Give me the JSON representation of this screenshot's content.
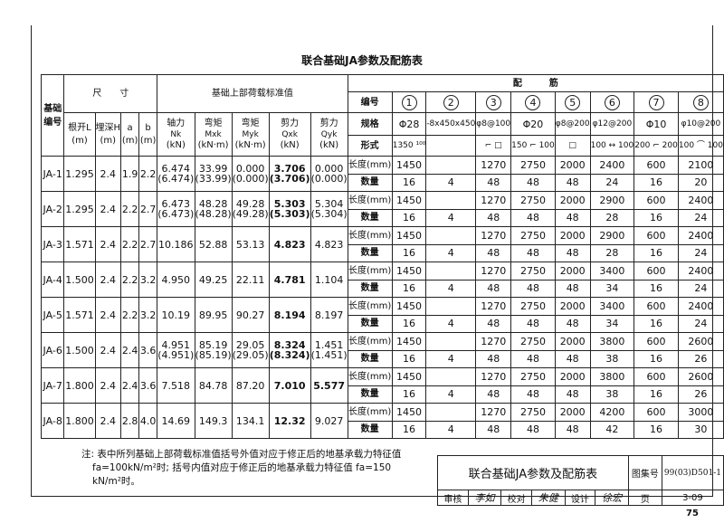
{
  "title": "联合基础JA参数及配筋表",
  "header": {
    "id_col": "基础编号",
    "dims": "尺　　寸",
    "loads": "基础上部荷载标准值",
    "rebar": "配　　　筋",
    "dim_cols": [
      [
        "根开L",
        "(m)"
      ],
      [
        "埋深H",
        "(m)"
      ],
      [
        "a",
        "(m)"
      ],
      [
        "b",
        "(m)"
      ]
    ],
    "load_cols": [
      [
        "轴力",
        "Nk",
        "(kN)"
      ],
      [
        "弯矩",
        "Mxk",
        "(kN·m)"
      ],
      [
        "弯矩",
        "Myk",
        "(kN·m)"
      ],
      [
        "剪力",
        "Qxk",
        "(kN)"
      ],
      [
        "剪力",
        "Qyk",
        "(kN)"
      ]
    ],
    "row_labels": {
      "number": "编号",
      "spec": "规格",
      "form": "形式",
      "length": "长度(mm)",
      "qty": "数量"
    },
    "bar_numbers": [
      "1",
      "2",
      "3",
      "4",
      "5",
      "6",
      "7",
      "8"
    ],
    "bar_specs": [
      "Φ28",
      "-8x450x450",
      "φ8@100",
      "Φ20",
      "φ8@200",
      "φ12@200",
      "Φ10",
      "φ10@200"
    ],
    "bar_forms": [
      "1350 ¹⁰⁰",
      "",
      "⌐ □",
      "150 ⌐ 100",
      "□",
      "100 ↔ 100",
      "200 ⌐ 200",
      "100 ⌒ 100"
    ]
  },
  "rows": [
    {
      "id": "JA-1",
      "L": "1.295",
      "H": "2.4",
      "a": "1.9",
      "b": "2.2",
      "N": "6.474",
      "N2": "(6.474)",
      "Mx": "33.99",
      "Mx2": "(33.99)",
      "My": "0.000",
      "My2": "(0.000)",
      "Qx": "3.706",
      "Qx2": "(3.706)",
      "Qy": "0.000",
      "Qy2": "(0.000)",
      "len": [
        "1450",
        "",
        "1270",
        "2750",
        "2000",
        "2400",
        "600",
        "2100"
      ],
      "qty": [
        "16",
        "4",
        "48",
        "48",
        "48",
        "24",
        "16",
        "20"
      ]
    },
    {
      "id": "JA-2",
      "L": "1.295",
      "H": "2.4",
      "a": "2.2",
      "b": "2.7",
      "N": "6.473",
      "N2": "(6.473)",
      "Mx": "48.28",
      "Mx2": "(48.28)",
      "My": "49.28",
      "My2": "(49.28)",
      "Qx": "5.303",
      "Qx2": "(5.303)",
      "Qy": "5.304",
      "Qy2": "(5.304)",
      "len": [
        "1450",
        "",
        "1270",
        "2750",
        "2000",
        "2900",
        "600",
        "2400"
      ],
      "qty": [
        "16",
        "4",
        "48",
        "48",
        "48",
        "28",
        "16",
        "24"
      ]
    },
    {
      "id": "JA-3",
      "L": "1.571",
      "H": "2.4",
      "a": "2.2",
      "b": "2.7",
      "N": "10.186",
      "Mx": "52.88",
      "My": "53.13",
      "Qx": "4.823",
      "Qy": "4.823",
      "len": [
        "1450",
        "",
        "1270",
        "2750",
        "2000",
        "2900",
        "600",
        "2400"
      ],
      "qty": [
        "16",
        "4",
        "48",
        "48",
        "48",
        "28",
        "16",
        "24"
      ]
    },
    {
      "id": "JA-4",
      "L": "1.500",
      "H": "2.4",
      "a": "2.2",
      "b": "3.2",
      "N": "4.950",
      "Mx": "49.25",
      "My": "22.11",
      "Qx": "4.781",
      "Qy": "1.104",
      "len": [
        "1450",
        "",
        "1270",
        "2750",
        "2000",
        "3400",
        "600",
        "2400"
      ],
      "qty": [
        "16",
        "4",
        "48",
        "48",
        "48",
        "34",
        "16",
        "24"
      ]
    },
    {
      "id": "JA-5",
      "L": "1.571",
      "H": "2.4",
      "a": "2.2",
      "b": "3.2",
      "N": "10.19",
      "Mx": "89.95",
      "My": "90.27",
      "Qx": "8.194",
      "Qy": "8.197",
      "len": [
        "1450",
        "",
        "1270",
        "2750",
        "2000",
        "3400",
        "600",
        "2400"
      ],
      "qty": [
        "16",
        "4",
        "48",
        "48",
        "48",
        "34",
        "16",
        "24"
      ]
    },
    {
      "id": "JA-6",
      "L": "1.500",
      "H": "2.4",
      "a": "2.4",
      "b": "3.6",
      "N": "4.951",
      "N2": "(4.951)",
      "Mx": "85.19",
      "Mx2": "(85.19)",
      "My": "29.05",
      "My2": "(29.05)",
      "Qx": "8.324",
      "Qx2": "(8.324)",
      "Qy": "1.451",
      "Qy2": "(1.451)",
      "len": [
        "1450",
        "",
        "1270",
        "2750",
        "2000",
        "3800",
        "600",
        "2600"
      ],
      "qty": [
        "16",
        "4",
        "48",
        "48",
        "48",
        "38",
        "16",
        "26"
      ]
    },
    {
      "id": "JA-7",
      "L": "1.800",
      "H": "2.4",
      "a": "2.4",
      "b": "3.6",
      "N": "7.518",
      "Mx": "84.78",
      "My": "87.20",
      "Qx": "7.010",
      "Qy": "5.577",
      "len": [
        "1450",
        "",
        "1270",
        "2750",
        "2000",
        "3800",
        "600",
        "2600"
      ],
      "qty": [
        "16",
        "4",
        "48",
        "48",
        "48",
        "38",
        "16",
        "26"
      ]
    },
    {
      "id": "JA-8",
      "L": "1.800",
      "H": "2.4",
      "a": "2.8",
      "b": "4.0",
      "N": "14.69",
      "Mx": "149.3",
      "My": "134.1",
      "Qx": "12.32",
      "Qy": "9.027",
      "len": [
        "1450",
        "",
        "1270",
        "2750",
        "2000",
        "4200",
        "600",
        "3000"
      ],
      "qty": [
        "16",
        "4",
        "48",
        "48",
        "48",
        "42",
        "16",
        "30"
      ]
    }
  ],
  "note": {
    "line1": "注: 表中所列基础上部荷载标准值括号外值对应于修正后的地基承载力特征值",
    "line2": "fa=100kN/m²时; 括号内值对应于修正后的地基承载力特征值 fa=150",
    "line3": "kN/m²时。"
  },
  "title_block": {
    "title": "联合基础JA参数及配筋表",
    "atlas_label": "图集号",
    "atlas_no": "99(03)D501-1",
    "review_label": "审核",
    "review_sig": "李如",
    "check_label": "校对",
    "check_sig": "朱健",
    "design_label": "设计",
    "design_sig": "徐宏",
    "page_label": "页",
    "page_value": "3-09"
  },
  "page_number": "75"
}
